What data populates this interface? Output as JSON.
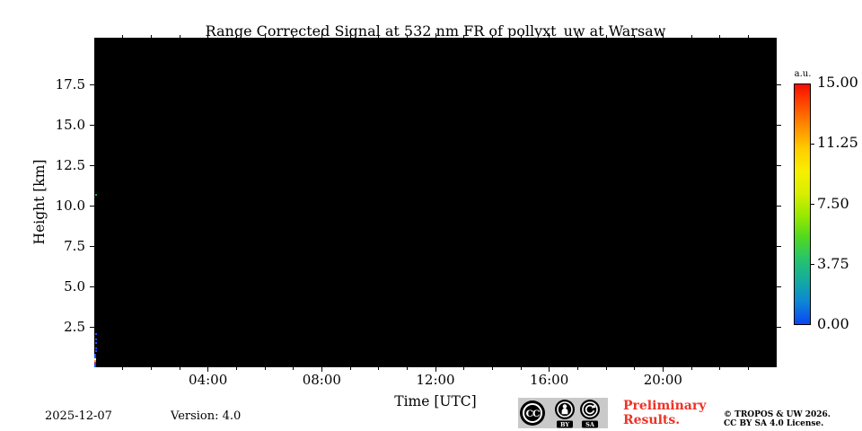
{
  "chart_data": {
    "type": "heatmap",
    "title": "Range Corrected Signal at 532 nm FR of pollyxt_uw at Warsaw",
    "xlabel": "Time [UTC]",
    "ylabel": "Height [km]",
    "plot_background": "#000000",
    "x_axis": {
      "range_hours": [
        0,
        24
      ],
      "major_tick_hours": [
        4,
        8,
        12,
        16,
        20
      ],
      "major_tick_labels": [
        "04:00",
        "08:00",
        "12:00",
        "16:00",
        "20:00"
      ],
      "minor_tick_every_hours": 1
    },
    "y_axis": {
      "range_km": [
        0,
        20.4
      ],
      "major_ticks_km": [
        2.5,
        5.0,
        7.5,
        10.0,
        12.5,
        15.0,
        17.5
      ],
      "major_tick_labels": [
        "2.5",
        "5.0",
        "7.5",
        "10.0",
        "12.5",
        "15.0",
        "17.5"
      ]
    },
    "colorbar": {
      "unit": "a.u.",
      "min": 0,
      "max": 15,
      "tick_values": [
        15,
        11.25,
        7.5,
        3.75,
        0
      ],
      "tick_labels": [
        "15.00",
        "11.25",
        "7.50",
        "3.75",
        "0.00"
      ],
      "gradient_top_to_bottom": [
        "#f80d00",
        "#ff4f00",
        "#ff9100",
        "#ffcf00",
        "#f7ef00",
        "#d8ee00",
        "#9be800",
        "#52d920",
        "#27c46c",
        "#14ab9f",
        "#0d85d8",
        "#0a46f0"
      ]
    },
    "signal_features": {
      "description": "Plot area is almost entirely black (no signal); only a sparse low-altitude signal strip in the very first profile near 00:00 UTC and one tiny speck near 10.7 km.",
      "first_profile_strip": [
        {
          "h0_km": 0.0,
          "h1_km": 0.28,
          "color": "#1e4fff"
        },
        {
          "h0_km": 0.28,
          "h1_km": 0.34,
          "color": "#ff2a00"
        },
        {
          "h0_km": 0.36,
          "h1_km": 0.43,
          "color": "#ffa200"
        },
        {
          "h0_km": 0.46,
          "h1_km": 0.53,
          "color": "#e9f6ff"
        },
        {
          "h0_km": 0.55,
          "h1_km": 0.86,
          "color": "#1e4fff"
        }
      ],
      "specks": [
        {
          "h_km": 1.0,
          "color": "#1e4fff"
        },
        {
          "h_km": 1.17,
          "color": "#1e4fff"
        },
        {
          "h_km": 1.5,
          "color": "#1e4fff"
        },
        {
          "h_km": 1.72,
          "color": "#1e4fff"
        },
        {
          "h_km": 2.05,
          "color": "#1e4fff"
        },
        {
          "h_km": 10.7,
          "color": "#1a9e7c"
        }
      ]
    }
  },
  "footer": {
    "date": "2025-12-07",
    "version": "Version: 4.0",
    "preliminary_line1": "Preliminary",
    "preliminary_line2": "Results.",
    "copyright_line1": "© TROPOS & UW 2026.",
    "copyright_line2": "CC BY SA 4.0 License.",
    "cc_badge": {
      "cc_label": "CC",
      "by_label": "BY",
      "sa_label": "SA"
    }
  },
  "colors": {
    "preliminary_red": "#ee3226",
    "badge_bg": "#c9c9c9",
    "text": "#000000"
  }
}
